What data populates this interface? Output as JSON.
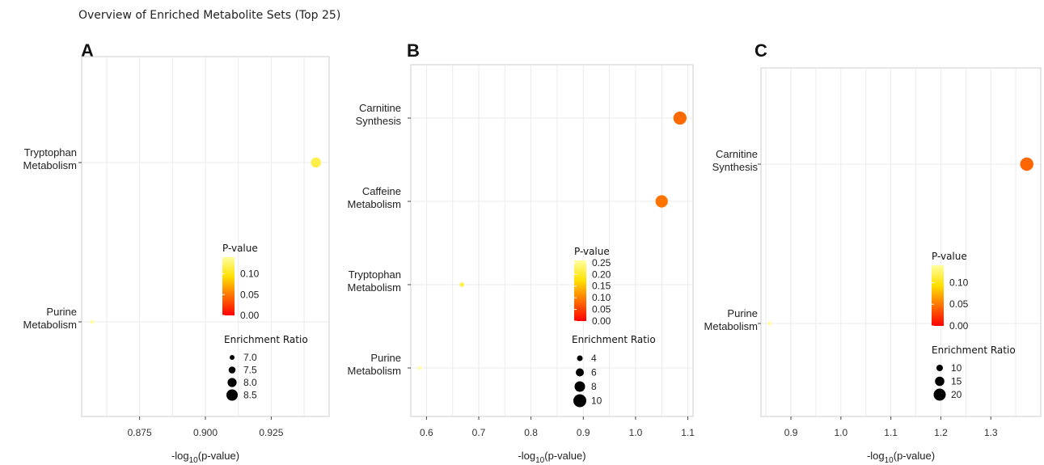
{
  "page": {
    "title": "Overview of Enriched Metabolite Sets (Top 25)"
  },
  "chart_data": [
    {
      "type": "scatter",
      "panel": "A",
      "title": "",
      "xlabel": "-log10(p-value)",
      "ylabel": "",
      "xlim": [
        0.853,
        0.947
      ],
      "xticks": [
        0.875,
        0.9,
        0.925
      ],
      "xtick_labels": [
        "0.875",
        "0.900",
        "0.925"
      ],
      "categories": [
        "Purine Metabolism",
        "Tryptophan Metabolism"
      ],
      "category_labels": [
        [
          "Purine",
          "Metabolism"
        ],
        [
          "Tryptophan",
          "Metabolism"
        ]
      ],
      "points": [
        {
          "category": "Purine Metabolism",
          "x": 0.857,
          "p_value": 0.14,
          "enrichment_ratio": 6.8
        },
        {
          "category": "Tryptophan Metabolism",
          "x": 0.942,
          "p_value": 0.114,
          "enrichment_ratio": 8.2
        }
      ],
      "color_legend": {
        "title": "P-value",
        "min": 0.0,
        "max": 0.14,
        "ticks": [
          0.0,
          0.05,
          0.1
        ],
        "tick_labels": [
          "0.00",
          "0.05",
          "0.10"
        ]
      },
      "size_legend": {
        "title": "Enrichment Ratio",
        "values": [
          7.0,
          7.5,
          8.0,
          8.5
        ],
        "labels": [
          "7.0",
          "7.5",
          "8.0",
          "8.5"
        ]
      },
      "grid": true,
      "legend_position": "inside right"
    },
    {
      "type": "scatter",
      "panel": "B",
      "title": "",
      "xlabel": "-log10(p-value)",
      "ylabel": "",
      "xlim": [
        0.57,
        1.11
      ],
      "xticks": [
        0.6,
        0.7,
        0.8,
        0.9,
        1.0,
        1.1
      ],
      "xtick_labels": [
        "0.6",
        "0.7",
        "0.8",
        "0.9",
        "1.0",
        "1.1"
      ],
      "categories": [
        "Purine Metabolism",
        "Tryptophan Metabolism",
        "Caffeine Metabolism",
        "Carnitine Synthesis"
      ],
      "category_labels": [
        [
          "Purine",
          "Metabolism"
        ],
        [
          "Tryptophan",
          "Metabolism"
        ],
        [
          "Caffeine",
          "Metabolism"
        ],
        [
          "Carnitine",
          "Synthesis"
        ]
      ],
      "points": [
        {
          "category": "Purine Metabolism",
          "x": 0.587,
          "p_value": 0.259,
          "enrichment_ratio": 2.5
        },
        {
          "category": "Tryptophan Metabolism",
          "x": 0.668,
          "p_value": 0.215,
          "enrichment_ratio": 3.2
        },
        {
          "category": "Caffeine Metabolism",
          "x": 1.05,
          "p_value": 0.089,
          "enrichment_ratio": 9.5
        },
        {
          "category": "Carnitine Synthesis",
          "x": 1.085,
          "p_value": 0.082,
          "enrichment_ratio": 10.2
        }
      ],
      "color_legend": {
        "title": "P-value",
        "min": 0.0,
        "max": 0.26,
        "ticks": [
          0.0,
          0.05,
          0.1,
          0.15,
          0.2,
          0.25
        ],
        "tick_labels": [
          "0.00",
          "0.05",
          "0.10",
          "0.15",
          "0.20",
          "0.25"
        ]
      },
      "size_legend": {
        "title": "Enrichment Ratio",
        "values": [
          4,
          6,
          8,
          10
        ],
        "labels": [
          "4",
          "6",
          "8",
          "10"
        ]
      },
      "grid": true,
      "legend_position": "inside right"
    },
    {
      "type": "scatter",
      "panel": "C",
      "title": "",
      "xlabel": "-log10(p-value)",
      "ylabel": "",
      "xlim": [
        0.84,
        1.4
      ],
      "xticks": [
        0.9,
        1.0,
        1.1,
        1.2,
        1.3
      ],
      "xtick_labels": [
        "0.9",
        "1.0",
        "1.1",
        "1.2",
        "1.3"
      ],
      "categories": [
        "Purine Metabolism",
        "Carnitine Synthesis"
      ],
      "category_labels": [
        [
          "Purine",
          "Metabolism"
        ],
        [
          "Carnitine",
          "Synthesis"
        ]
      ],
      "points": [
        {
          "category": "Purine Metabolism",
          "x": 0.857,
          "p_value": 0.139,
          "enrichment_ratio": 5
        },
        {
          "category": "Carnitine Synthesis",
          "x": 1.372,
          "p_value": 0.042,
          "enrichment_ratio": 22
        }
      ],
      "color_legend": {
        "title": "P-value",
        "min": 0.0,
        "max": 0.14,
        "ticks": [
          0.0,
          0.05,
          0.1
        ],
        "tick_labels": [
          "0.00",
          "0.05",
          "0.10"
        ]
      },
      "size_legend": {
        "title": "Enrichment Ratio",
        "values": [
          10,
          15,
          20
        ],
        "labels": [
          "10",
          "15",
          "20"
        ]
      },
      "grid": true,
      "legend_position": "inside right"
    }
  ],
  "colors": {
    "scale": [
      "#ff0000",
      "#ff7000",
      "#ffe000",
      "#ffffa0"
    ],
    "grid": "#ebebeb",
    "frame": "#cccccc"
  }
}
